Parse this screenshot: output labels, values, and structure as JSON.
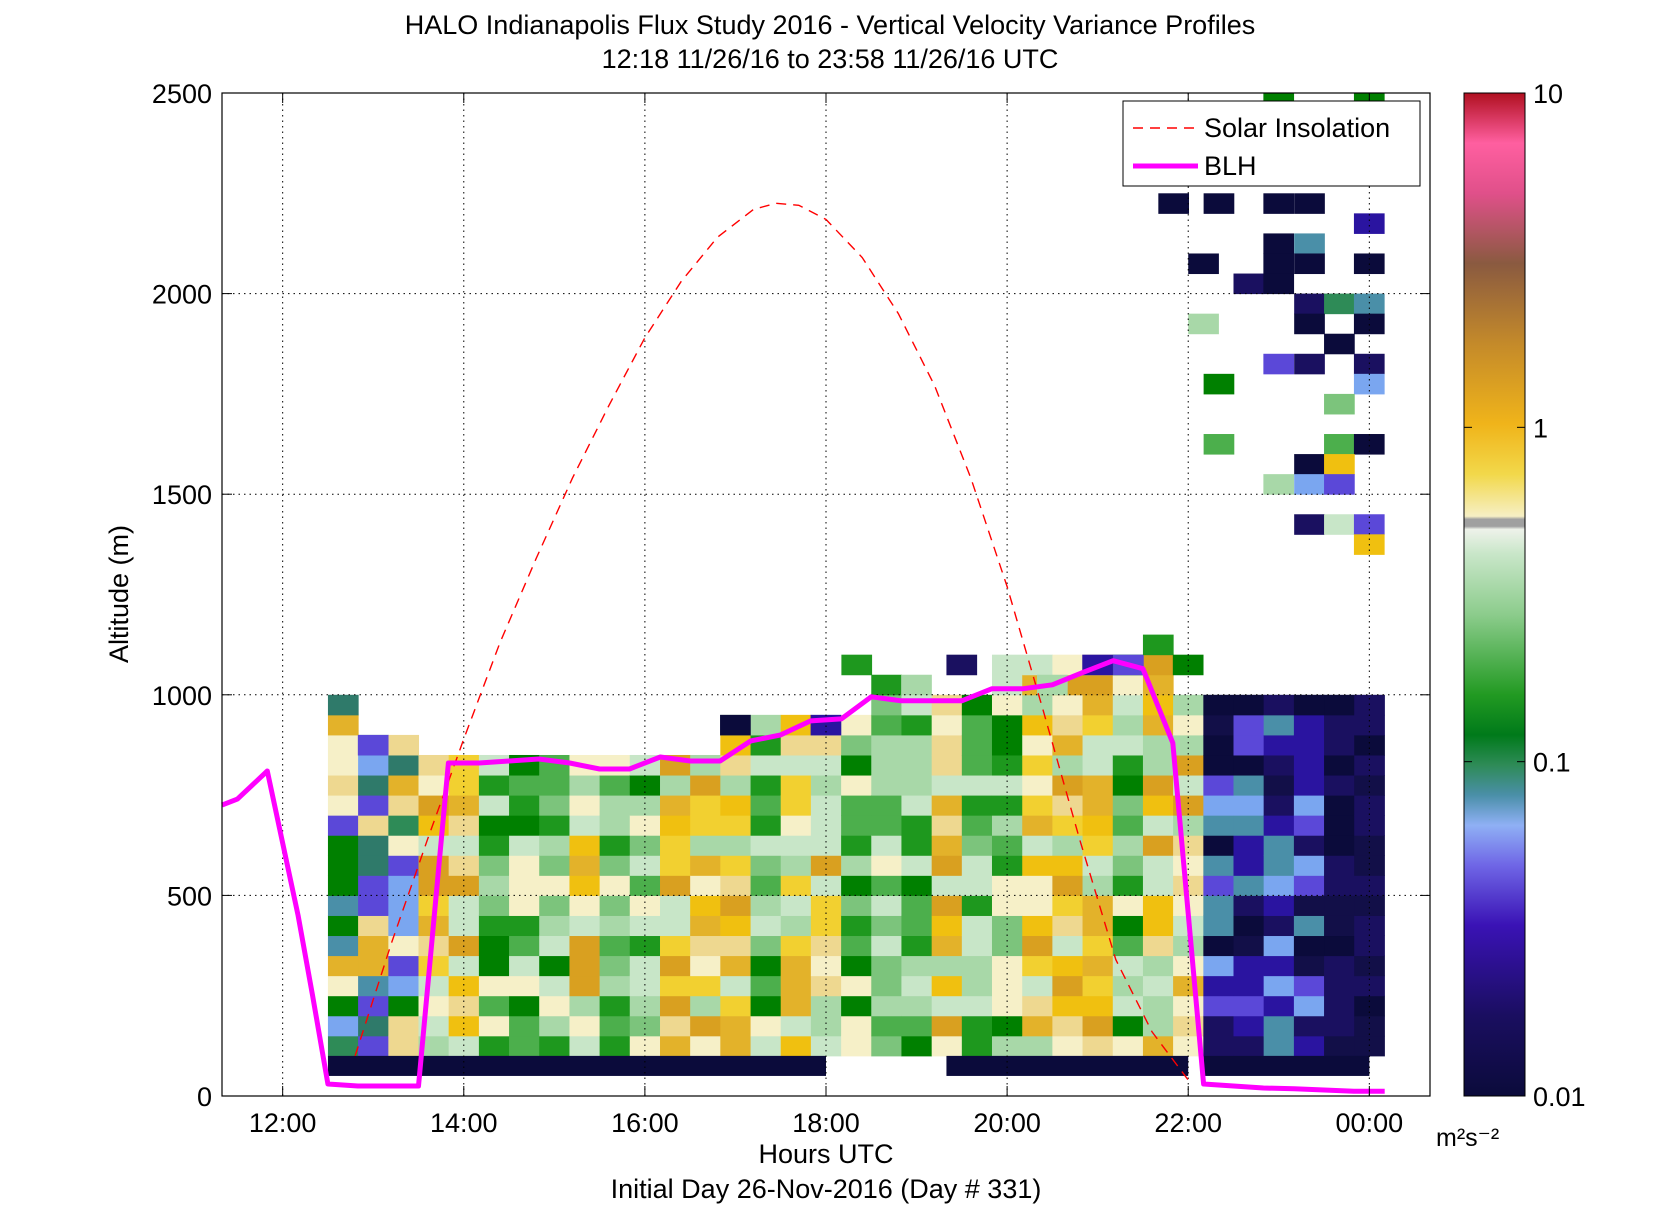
{
  "title": "HALO Indianapolis Flux Study 2016 - Vertical Velocity Variance Profiles",
  "subtitle": "12:18 11/26/16 to 23:58 11/26/16  UTC",
  "footer": "Initial Day 26-Nov-2016 (Day # 331)",
  "colorbar_unit": "m²s⁻²",
  "chart_data": {
    "type": "heatmap",
    "title": "HALO Indianapolis Flux Study 2016 - Vertical Velocity Variance Profiles",
    "xlabel": "Hours UTC",
    "ylabel": "Altitude (m)",
    "xlim": [
      11.33,
      24.67
    ],
    "ylim": [
      0,
      2500
    ],
    "x_ticks": [
      12,
      14,
      16,
      18,
      20,
      22,
      24
    ],
    "x_tick_labels": [
      "12:00",
      "14:00",
      "16:00",
      "18:00",
      "20:00",
      "22:00",
      "00:00"
    ],
    "y_ticks": [
      0,
      500,
      1000,
      1500,
      2000,
      2500
    ],
    "y_tick_labels": [
      "0",
      "500",
      "1000",
      "1500",
      "2000",
      "2500"
    ],
    "grid": true,
    "legend_position": "top-right",
    "colorbar": {
      "scale": "log",
      "range": [
        0.01,
        10
      ],
      "ticks": [
        0.01,
        0.1,
        1,
        10
      ],
      "tick_labels": [
        "0.01",
        "0.1",
        "1",
        "10"
      ],
      "label": "m²s⁻²"
    },
    "series": [
      {
        "name": "Solar Insolation",
        "style": "dashed",
        "color": "#ff0000",
        "x": [
          12.8,
          13.2,
          13.6,
          14.0,
          14.4,
          14.8,
          15.2,
          15.6,
          16.0,
          16.4,
          16.8,
          17.2,
          17.45,
          17.7,
          18.0,
          18.4,
          18.8,
          19.2,
          19.6,
          20.0,
          20.4,
          20.8,
          21.2,
          21.6,
          22.0
        ],
        "y": [
          100,
          380,
          640,
          890,
          1130,
          1340,
          1540,
          1720,
          1890,
          2030,
          2140,
          2210,
          2225,
          2220,
          2185,
          2090,
          1950,
          1770,
          1540,
          1270,
          960,
          640,
          340,
          160,
          40
        ]
      },
      {
        "name": "BLH",
        "style": "solid",
        "color": "#ff00ff",
        "x": [
          11.33,
          11.5,
          11.83,
          12.17,
          12.33,
          12.5,
          12.83,
          13.17,
          13.5,
          13.83,
          14.17,
          14.5,
          14.83,
          15.17,
          15.5,
          15.83,
          16.17,
          16.5,
          16.83,
          17.17,
          17.5,
          17.83,
          18.17,
          18.5,
          18.83,
          19.17,
          19.5,
          19.83,
          20.17,
          20.5,
          20.83,
          21.17,
          21.5,
          21.83,
          22.17,
          22.5,
          22.83,
          23.17,
          23.5,
          23.83,
          24.17
        ],
        "y": [
          725,
          740,
          810,
          450,
          250,
          30,
          25,
          25,
          25,
          830,
          830,
          835,
          840,
          830,
          815,
          815,
          845,
          835,
          835,
          885,
          900,
          935,
          940,
          995,
          985,
          985,
          985,
          1015,
          1015,
          1025,
          1055,
          1085,
          1065,
          880,
          30,
          25,
          20,
          18,
          15,
          12,
          12
        ]
      }
    ],
    "z_note_values_m2s2": {
      "surface_layer_low": 0.01,
      "boundary_layer_typical": 0.5,
      "upper_sparse_typical": 0.01
    }
  }
}
